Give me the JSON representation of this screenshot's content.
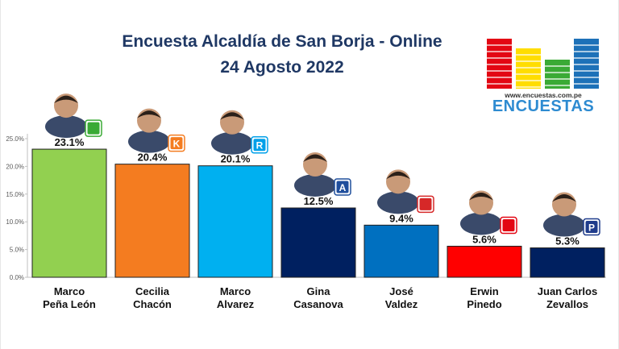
{
  "header": {
    "title_line1": "Encuesta Alcaldía de San Borja - Online",
    "title_line2": "24 Agosto 2022"
  },
  "logo": {
    "url": "www.encuestas.com.pe",
    "name": "ENCUESTAS",
    "colors": [
      "#e30613",
      "#ffdd00",
      "#3aaa35",
      "#1d71b8"
    ]
  },
  "chart_data": {
    "type": "bar",
    "title": "Encuesta Alcaldía de San Borja - Online",
    "subtitle": "24 Agosto 2022",
    "categories": [
      "Marco Peña León",
      "Cecilia Chacón",
      "Marco Alvarez",
      "Gina Casanova",
      "José Valdez",
      "Erwin Pinedo",
      "Juan Carlos Zevallos"
    ],
    "category_lines": [
      [
        "Marco",
        "Peña León"
      ],
      [
        "Cecilia",
        "Chacón"
      ],
      [
        "Marco",
        "Alvarez"
      ],
      [
        "Gina",
        "Casanova"
      ],
      [
        "José",
        "Valdez"
      ],
      [
        "Erwin",
        "Pinedo"
      ],
      [
        "Juan Carlos",
        "Zevallos"
      ]
    ],
    "values": [
      23.1,
      20.4,
      20.1,
      12.5,
      9.4,
      5.6,
      5.3
    ],
    "value_labels": [
      "23.1%",
      "20.4%",
      "20.1%",
      "12.5%",
      "9.4%",
      "5.6%",
      "5.3%"
    ],
    "colors": [
      "#92d050",
      "#f47c20",
      "#00b0f0",
      "#002060",
      "#0070c0",
      "#ff0000",
      "#002060"
    ],
    "ylim": [
      0,
      25
    ],
    "yticks": [
      0,
      5,
      10,
      15,
      20,
      25
    ],
    "ytick_labels": [
      "0.0%",
      "5.0%",
      "10.0%",
      "15.0%",
      "20.0%",
      "25.0%"
    ],
    "xlabel": "",
    "ylabel": "",
    "grid": false,
    "party_icons": [
      "building-icon",
      "k-letter-icon",
      "r-letter-icon",
      "a-letter-icon",
      "heart-icon",
      "flag-icon",
      "p-letter-icon"
    ],
    "party_icon_letters": [
      "",
      "K",
      "R",
      "A",
      "",
      "",
      "P"
    ],
    "party_icon_colors": [
      "#3aaa35",
      "#f47c20",
      "#00a0e9",
      "#1f4e9c",
      "#d62828",
      "#e30613",
      "#1f3c8c"
    ]
  }
}
